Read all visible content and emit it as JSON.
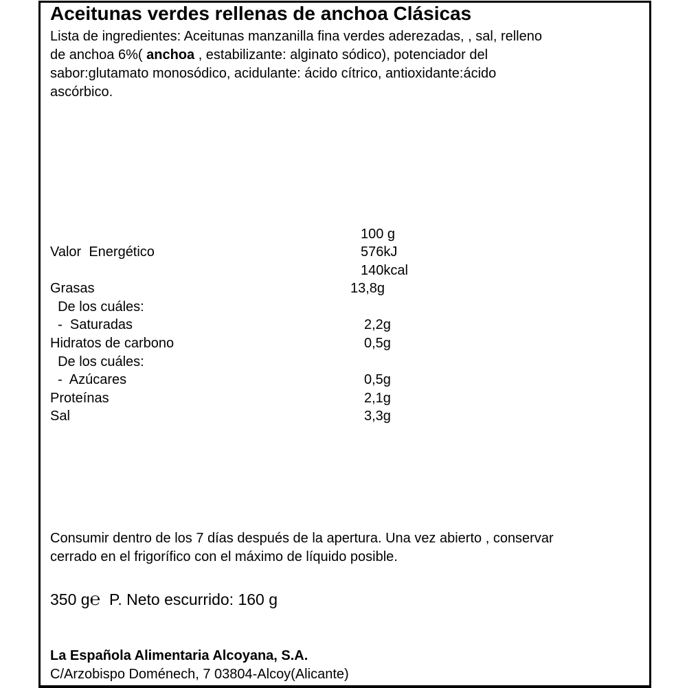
{
  "title": "Aceitunas verdes rellenas de anchoa Clásicas",
  "ingredients": {
    "line1": "Lista de ingredientes: Aceitunas manzanilla fina verdes aderezadas, , sal, relleno",
    "line2_pre": "de anchoa 6%( ",
    "line2_bold": "anchoa",
    "line2_post": " , estabilizante: alginato sódico), potenciador del",
    "line3": "sabor:glutamato monosódico, acidulante: ácido cítrico, antioxidante:ácido",
    "line4": "ascórbico."
  },
  "nutrition": {
    "header": "100 g",
    "rows": [
      {
        "label": "Valor  Energético",
        "value": "576kJ"
      },
      {
        "label": "",
        "value": "140kcal"
      },
      {
        "label": "Grasas",
        "value": "13,8g"
      },
      {
        "label": "  De los cuáles:",
        "value": ""
      },
      {
        "label": "  -  Saturadas",
        "value": "2,2g"
      },
      {
        "label": "Hidratos de carbono",
        "value": "0,5g"
      },
      {
        "label": "  De los cuáles:",
        "value": ""
      },
      {
        "label": "  -  Azúcares",
        "value": "0,5g"
      },
      {
        "label": "Proteínas",
        "value": "2,1g"
      },
      {
        "label": "Sal",
        "value": "3,3g"
      }
    ]
  },
  "storage": {
    "line1": "Consumir dentro de los 7 días después de la apertura. Una vez abierto , conservar",
    "line2": "cerrado en el frigorífico con el máximo de líquido posible."
  },
  "weight": {
    "net": "350 g",
    "emark": "℮",
    "drained": "P. Neto escurrido: 160 g"
  },
  "company": "La Española Alimentaria Alcoyana, S.A.",
  "address": "C/Arzobispo Doménech, 7  03804-Alcoy(Alicante)"
}
